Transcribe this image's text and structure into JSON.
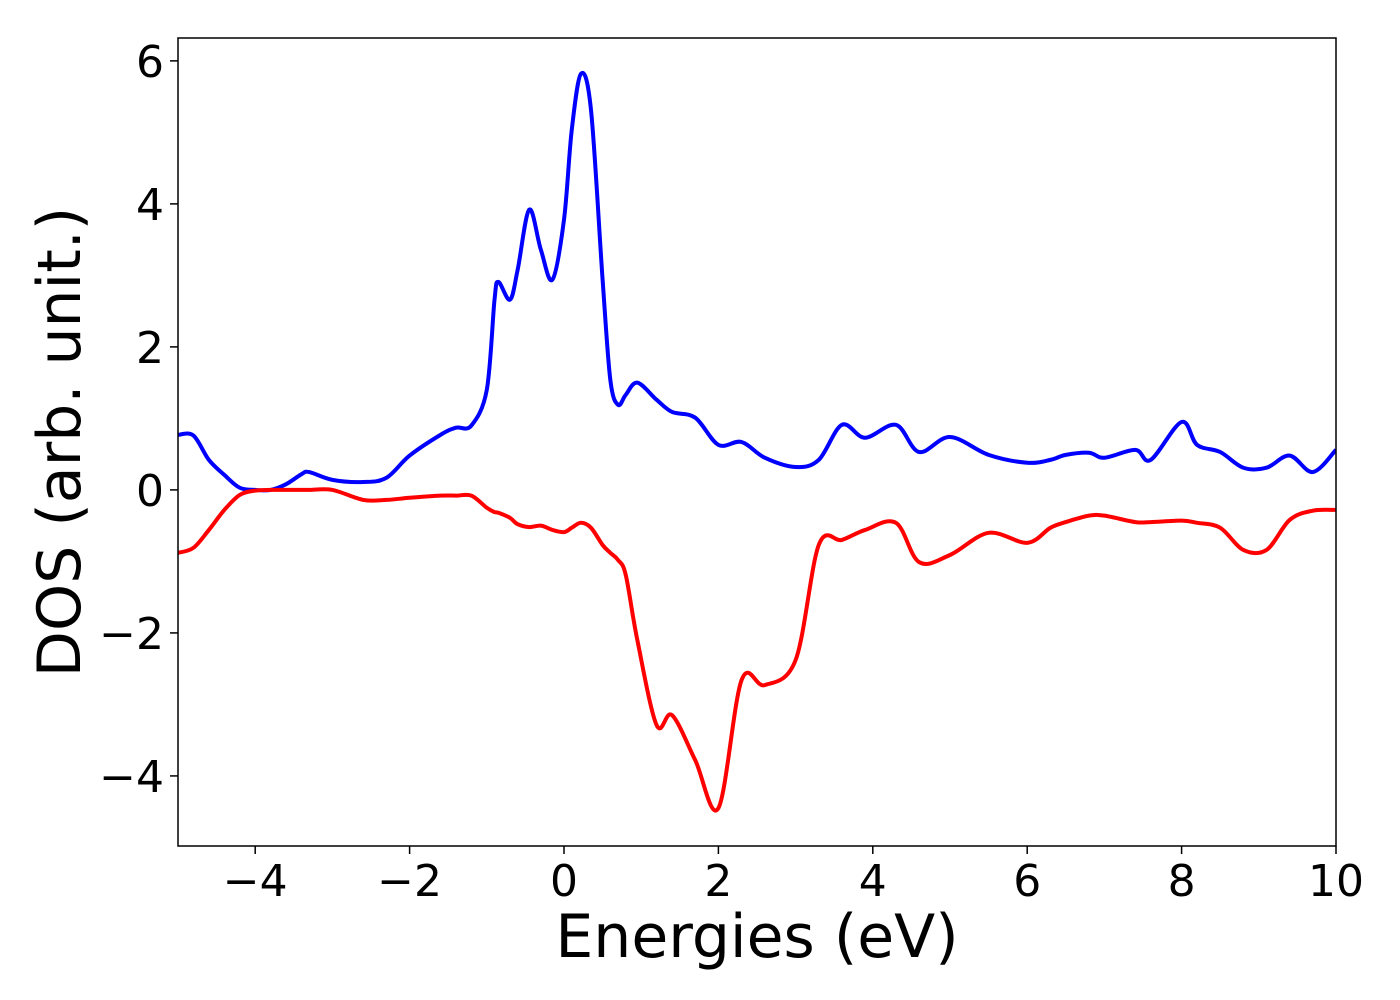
{
  "chart_data": {
    "type": "line",
    "x_label": "Energies (eV)",
    "y_label": "DOS (arb. unit.)",
    "x": [
      -5,
      -4.8,
      -4.6,
      -4.4,
      -4.2,
      -4.0,
      -3.8,
      -3.6,
      -3.4,
      -3.3,
      -3.0,
      -2.6,
      -2.3,
      -2.0,
      -1.6,
      -1.4,
      -1.2,
      -1.0,
      -0.9,
      -0.85,
      -0.7,
      -0.6,
      -0.45,
      -0.3,
      -0.15,
      0,
      0.1,
      0.22,
      0.35,
      0.5,
      0.6,
      0.7,
      0.8,
      0.95,
      1.2,
      1.4,
      1.7,
      2.0,
      2.3,
      2.6,
      3.0,
      3.3,
      3.6,
      3.9,
      4.3,
      4.6,
      5.0,
      5.5,
      6.0,
      6.3,
      6.5,
      6.8,
      7.0,
      7.4,
      7.6,
      8.0,
      8.2,
      8.5,
      8.8,
      9.1,
      9.4,
      9.7,
      10.0
    ],
    "series": [
      {
        "color": "#0000ff",
        "values": [
          0.77,
          0.76,
          0.42,
          0.21,
          0.03,
          0,
          0,
          0.08,
          0.22,
          0.25,
          0.14,
          0.11,
          0.17,
          0.48,
          0.77,
          0.87,
          0.9,
          1.4,
          2.66,
          2.91,
          2.66,
          3.08,
          3.92,
          3.36,
          2.94,
          3.78,
          5.03,
          5.82,
          5.31,
          2.94,
          1.54,
          1.19,
          1.33,
          1.5,
          1.26,
          1.09,
          1.01,
          0.63,
          0.67,
          0.45,
          0.32,
          0.42,
          0.91,
          0.73,
          0.91,
          0.53,
          0.74,
          0.49,
          0.38,
          0.42,
          0.49,
          0.52,
          0.45,
          0.56,
          0.42,
          0.95,
          0.63,
          0.53,
          0.31,
          0.31,
          0.48,
          0.25,
          0.56
        ]
      },
      {
        "color": "#ff0000",
        "values": [
          -0.88,
          -0.81,
          -0.56,
          -0.28,
          -0.07,
          -0.01,
          0,
          0,
          0,
          0,
          0,
          -0.14,
          -0.14,
          -0.11,
          -0.08,
          -0.08,
          -0.08,
          -0.25,
          -0.31,
          -0.32,
          -0.39,
          -0.48,
          -0.52,
          -0.5,
          -0.56,
          -0.59,
          -0.53,
          -0.46,
          -0.53,
          -0.77,
          -0.88,
          -0.98,
          -1.19,
          -2.1,
          -3.29,
          -3.15,
          -3.78,
          -4.45,
          -2.66,
          -2.73,
          -2.38,
          -0.77,
          -0.7,
          -0.56,
          -0.46,
          -1.01,
          -0.91,
          -0.6,
          -0.74,
          -0.53,
          -0.45,
          -0.36,
          -0.36,
          -0.45,
          -0.45,
          -0.43,
          -0.46,
          -0.53,
          -0.84,
          -0.84,
          -0.42,
          -0.29,
          -0.28
        ]
      }
    ],
    "xlim": [
      -5,
      10
    ],
    "xticks": [
      {
        "value": -4,
        "label": "−4"
      },
      {
        "value": -2,
        "label": "−2"
      },
      0,
      2,
      4,
      6,
      8,
      10
    ],
    "ylim": [
      -4.98,
      6.32
    ],
    "yticks": [
      {
        "value": -4,
        "label": "−4"
      },
      {
        "value": -2,
        "label": "−2"
      },
      0,
      2,
      4,
      6
    ],
    "grid": false
  }
}
